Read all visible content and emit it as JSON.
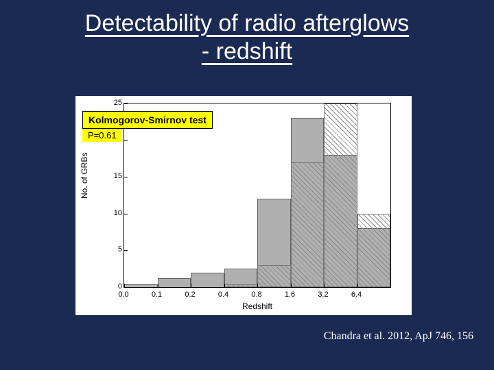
{
  "title_line1": "Detectability of radio afterglows",
  "title_line2": "- redshift",
  "ks": {
    "label": "Kolmogorov-Smirnov test",
    "pvalue": "P=0.61"
  },
  "citation": "Chandra et al. 2012, ApJ 746, 156",
  "chart": {
    "type": "histogram",
    "xlabel": "Redshift",
    "ylabel": "No. of GRBs",
    "background_color": "#ffffff",
    "axis_color": "#000000",
    "ylim": [
      0,
      25
    ],
    "yticks": [
      0,
      5,
      10,
      15,
      20,
      25
    ],
    "xtick_labels": [
      "0.0",
      "0.1",
      "0.2",
      "0.4",
      "0.8",
      "1.6",
      "3.2",
      "6.4"
    ],
    "bars_solid": {
      "color": "#b0b0b0",
      "values": [
        0.4,
        1.2,
        2,
        2.5,
        12,
        23,
        18,
        8
      ]
    },
    "bars_hatched": {
      "border_color": "#777777",
      "hatch_color": "#888888",
      "values": [
        0,
        0,
        0,
        0.4,
        3,
        17,
        25,
        10
      ]
    },
    "label_fontsize": 12,
    "tick_fontsize": 11,
    "bar_edge_color": "#606060"
  }
}
